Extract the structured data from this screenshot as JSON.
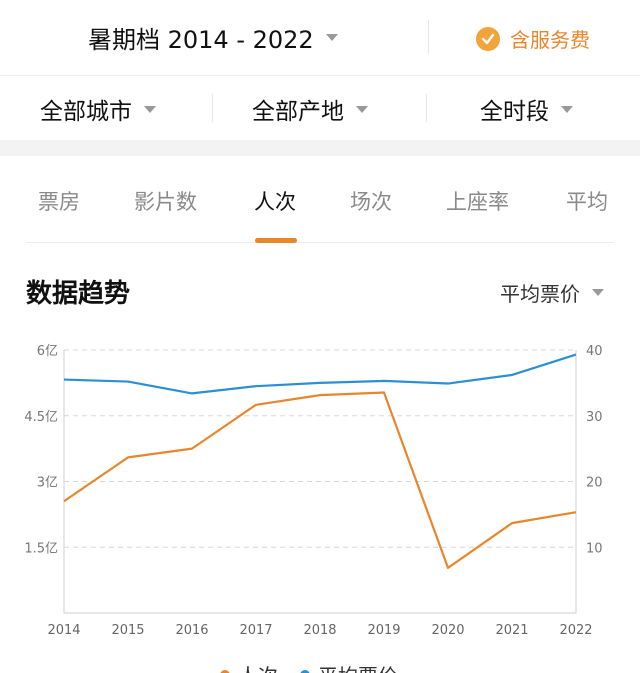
{
  "header": {
    "period_label": "暑期档 2014 - 2022",
    "service_fee_label": "含服务费"
  },
  "filters": {
    "city": "全部城市",
    "origin": "全部产地",
    "time": "全时段"
  },
  "tabs": [
    {
      "label": "票房",
      "active": false
    },
    {
      "label": "影片数",
      "active": false
    },
    {
      "label": "人次",
      "active": true
    },
    {
      "label": "场次",
      "active": false
    },
    {
      "label": "上座率",
      "active": false
    },
    {
      "label": "平均",
      "active": false
    }
  ],
  "section": {
    "title": "数据趋势",
    "metric_selector": "平均票价"
  },
  "colors": {
    "accent": "#e8862b",
    "series_people": "#e8862b",
    "series_price": "#2b8fd6"
  },
  "chart_data": {
    "type": "line",
    "x": [
      "2014",
      "2015",
      "2016",
      "2017",
      "2018",
      "2019",
      "2020",
      "2021",
      "2022"
    ],
    "series": [
      {
        "name": "人次",
        "axis": "left",
        "values": [
          2.55,
          3.55,
          3.75,
          4.75,
          4.97,
          5.03,
          1.03,
          2.05,
          2.3
        ]
      },
      {
        "name": "平均票价",
        "axis": "right",
        "values": [
          35.5,
          35.2,
          33.4,
          34.5,
          35.0,
          35.3,
          34.9,
          36.2,
          39.3
        ]
      }
    ],
    "y_left": {
      "range": [
        0,
        6
      ],
      "ticks": [
        1.5,
        3,
        4.5,
        6
      ],
      "tick_labels": [
        "1.5亿",
        "3亿",
        "4.5亿",
        "6亿"
      ]
    },
    "y_right": {
      "range": [
        0,
        40
      ],
      "ticks": [
        10,
        20,
        30,
        40
      ],
      "tick_labels": [
        "10",
        "20",
        "30",
        "40"
      ]
    },
    "grid": "dashed-horizontal",
    "legend_position": "bottom"
  }
}
